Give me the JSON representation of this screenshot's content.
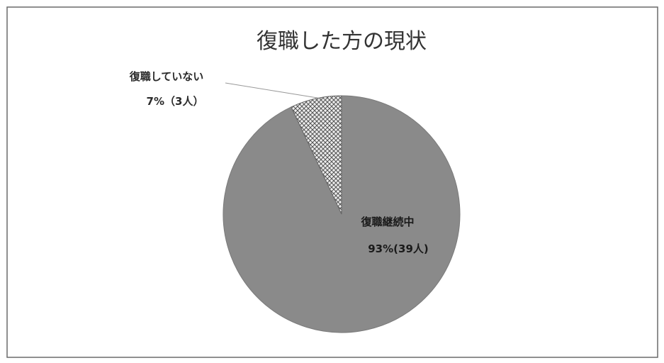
{
  "chart_data": {
    "type": "pie",
    "title": "復職した方の現状",
    "slices": [
      {
        "name": "復職継続中",
        "percent": 93,
        "count": 39,
        "label_line1": "復職継続中",
        "label_line2": "93%(39人)",
        "color": "#8a8a8a",
        "pattern": "solid"
      },
      {
        "name": "復職していない",
        "percent": 7,
        "count": 3,
        "label_line1": "復職していない",
        "label_line2": "7%（3人）",
        "color": "#d9d9d9",
        "pattern": "crosshatch"
      }
    ]
  }
}
